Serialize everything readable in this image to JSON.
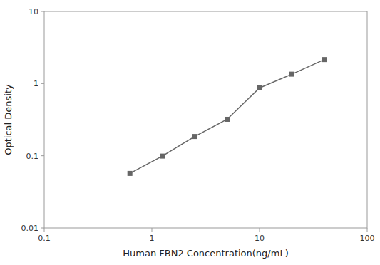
{
  "chart_data": {
    "type": "line",
    "x": [
      0.625,
      1.25,
      2.5,
      5.0,
      10.0,
      20.0,
      40.0
    ],
    "values": [
      0.057,
      0.099,
      0.185,
      0.32,
      0.87,
      1.35,
      2.15
    ],
    "color": "#666666",
    "marker": "square",
    "xlabel": "Human FBN2 Concentration(ng/mL)",
    "ylabel": "Optical Density",
    "xlim": [
      0.1,
      100
    ],
    "ylim": [
      0.01,
      10
    ],
    "xticks": [
      0.1,
      1,
      10,
      100
    ],
    "yticks": [
      0.01,
      0.1,
      1,
      10
    ],
    "log": true,
    "grid": false
  }
}
